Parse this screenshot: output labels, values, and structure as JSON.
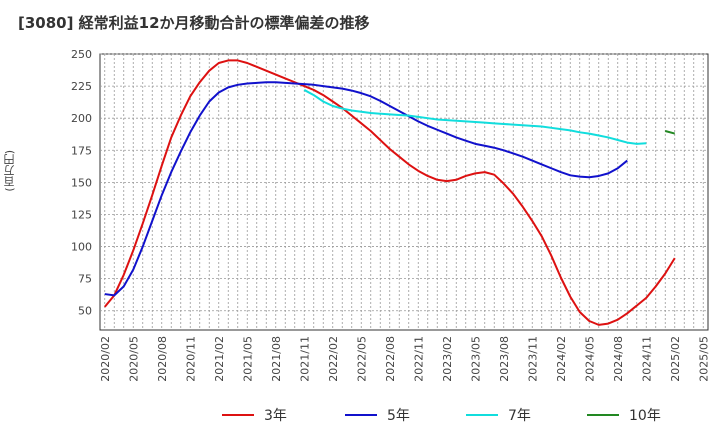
{
  "title": "[3080]  経常利益12か月移動合計の標準偏差の推移",
  "y_unit_label": "(百万円)",
  "chart_data": {
    "type": "line",
    "title": "[3080]  経常利益12か月移動合計の標準偏差の推移",
    "ylabel": "(百万円)",
    "xlabel": "",
    "ylim": [
      35,
      250
    ],
    "yticks": [
      50,
      75,
      100,
      125,
      150,
      175,
      200,
      225,
      250
    ],
    "grid": true,
    "legend_position": "bottom",
    "x_ticks": [
      "2020/02",
      "2020/05",
      "2020/08",
      "2020/11",
      "2021/02",
      "2021/05",
      "2021/08",
      "2021/11",
      "2022/02",
      "2022/05",
      "2022/08",
      "2022/11",
      "2023/02",
      "2023/05",
      "2023/08",
      "2023/11",
      "2024/02",
      "2024/05",
      "2024/08",
      "2024/11",
      "2025/02",
      "2025/05"
    ],
    "x_start": "2020/02",
    "series": [
      {
        "name": "3年",
        "color": "#dd1111",
        "start": "2020/02",
        "values": [
          53,
          62,
          78,
          97,
          118,
          140,
          163,
          185,
          202,
          217,
          228,
          237,
          243,
          245,
          245,
          243,
          240,
          237,
          234,
          231,
          228,
          225,
          222,
          218,
          213,
          208,
          202,
          196,
          190,
          183,
          176,
          170,
          164,
          159,
          155,
          152,
          151,
          152,
          155,
          157,
          158,
          156,
          149,
          141,
          131,
          120,
          108,
          93,
          76,
          61,
          49,
          42,
          39,
          40,
          43,
          48,
          54,
          60,
          69,
          79,
          91
        ]
      },
      {
        "name": "5年",
        "color": "#1111cc",
        "start": "2020/02",
        "values": [
          63,
          62,
          69,
          82,
          100,
          120,
          140,
          158,
          174,
          189,
          202,
          213,
          220,
          224,
          226,
          227,
          227.5,
          228,
          228,
          227.5,
          227,
          226.5,
          226,
          225,
          224,
          223,
          221.5,
          219.5,
          217,
          213.5,
          209.5,
          205.5,
          201.5,
          197.5,
          194,
          191,
          188,
          185,
          182.5,
          180,
          178.5,
          177,
          175,
          172.5,
          170,
          167,
          164,
          161,
          158,
          155.5,
          154.5,
          154,
          155,
          157,
          161,
          167
        ]
      },
      {
        "name": "7年",
        "color": "#11dddd",
        "start": "2021/11",
        "values": [
          222,
          218,
          213,
          209.5,
          207.5,
          206,
          205,
          204,
          203.5,
          203,
          202.5,
          202,
          201,
          200,
          199,
          198.5,
          198,
          197.5,
          197,
          196.5,
          196,
          195.5,
          195,
          194.5,
          194,
          193.5,
          192.5,
          191.5,
          190.5,
          189,
          188,
          186.5,
          185,
          183,
          181,
          180,
          180.5
        ]
      },
      {
        "name": "10年",
        "color": "#228822",
        "start": "2025/01",
        "values": [
          190,
          188
        ]
      }
    ]
  }
}
